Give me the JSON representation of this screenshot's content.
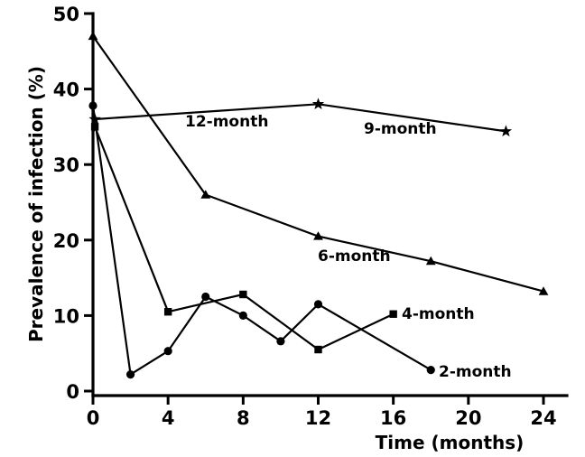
{
  "chart_data": {
    "type": "line",
    "title": "",
    "xlabel": "Time (months)",
    "ylabel": "Prevalence of infection (%)",
    "xlim": [
      0,
      24
    ],
    "ylim": [
      0,
      50
    ],
    "x_ticks": [
      "0",
      "4",
      "8",
      "12",
      "16",
      "20",
      "24"
    ],
    "y_ticks": [
      "0",
      "10",
      "20",
      "30",
      "40",
      "50"
    ],
    "grid": false,
    "legend": "none",
    "series": [
      {
        "name": "12-month",
        "marker": "none",
        "x": [
          0,
          0.05,
          0.1
        ],
        "y": [
          36,
          34.5,
          35
        ]
      },
      {
        "name": "9-month",
        "marker": "star",
        "x": [
          0.1,
          12,
          22
        ],
        "y": [
          36,
          38,
          34.4
        ]
      },
      {
        "name": "6-month",
        "marker": "triangle",
        "x": [
          0,
          6,
          12,
          18,
          24
        ],
        "y": [
          47,
          26,
          20.5,
          17.2,
          13.2
        ]
      },
      {
        "name": "4-month",
        "marker": "square",
        "x": [
          0.1,
          4,
          8,
          12,
          16
        ],
        "y": [
          35,
          10.5,
          12.8,
          5.5,
          10.2
        ]
      },
      {
        "name": "2-month",
        "marker": "circle",
        "x": [
          0,
          2,
          4,
          6,
          8,
          10,
          12,
          18
        ],
        "y": [
          37.8,
          2.2,
          5.3,
          12.5,
          10,
          6.6,
          11.5,
          2.8
        ]
      }
    ]
  }
}
